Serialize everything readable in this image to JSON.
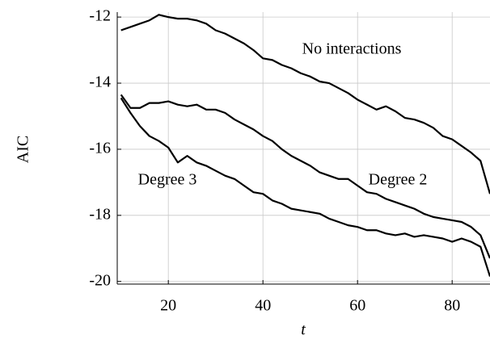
{
  "chart_data": {
    "type": "line",
    "x_label": "t",
    "y_label": "AIC",
    "x": [
      10,
      12,
      14,
      16,
      18,
      20,
      22,
      24,
      26,
      28,
      30,
      32,
      34,
      36,
      38,
      40,
      42,
      44,
      46,
      48,
      50,
      52,
      54,
      56,
      58,
      60,
      62,
      64,
      66,
      68,
      70,
      72,
      74,
      76,
      78,
      80,
      82,
      84,
      86,
      88
    ],
    "series": [
      {
        "name": "No interactions",
        "color": "#000000",
        "values": [
          -12.4,
          -12.3,
          -12.2,
          -12.1,
          -11.93,
          -12.0,
          -12.05,
          -12.05,
          -12.1,
          -12.2,
          -12.4,
          -12.5,
          -12.65,
          -12.8,
          -13.0,
          -13.25,
          -13.3,
          -13.45,
          -13.55,
          -13.7,
          -13.8,
          -13.95,
          -14.0,
          -14.15,
          -14.3,
          -14.5,
          -14.65,
          -14.8,
          -14.7,
          -14.85,
          -15.05,
          -15.1,
          -15.2,
          -15.35,
          -15.6,
          -15.7,
          -15.9,
          -16.1,
          -16.35,
          -17.35
        ]
      },
      {
        "name": "Degree 2",
        "color": "#000000",
        "values": [
          -14.35,
          -14.75,
          -14.75,
          -14.6,
          -14.6,
          -14.55,
          -14.65,
          -14.7,
          -14.65,
          -14.8,
          -14.8,
          -14.9,
          -15.1,
          -15.25,
          -15.4,
          -15.6,
          -15.75,
          -16.0,
          -16.2,
          -16.35,
          -16.5,
          -16.7,
          -16.8,
          -16.9,
          -16.9,
          -17.1,
          -17.3,
          -17.35,
          -17.5,
          -17.6,
          -17.7,
          -17.8,
          -17.95,
          -18.05,
          -18.1,
          -18.15,
          -18.2,
          -18.35,
          -18.6,
          -19.3
        ]
      },
      {
        "name": "Degree 3",
        "color": "#000000",
        "values": [
          -14.45,
          -14.9,
          -15.3,
          -15.6,
          -15.75,
          -15.95,
          -16.4,
          -16.2,
          -16.4,
          -16.5,
          -16.65,
          -16.8,
          -16.9,
          -17.1,
          -17.3,
          -17.35,
          -17.55,
          -17.65,
          -17.8,
          -17.85,
          -17.9,
          -17.95,
          -18.1,
          -18.2,
          -18.3,
          -18.35,
          -18.45,
          -18.45,
          -18.55,
          -18.6,
          -18.55,
          -18.65,
          -18.6,
          -18.65,
          -18.7,
          -18.8,
          -18.7,
          -18.8,
          -18.95,
          -19.85
        ]
      }
    ],
    "xlim": [
      9.2,
      88
    ],
    "ylim": [
      -20.08,
      -11.85
    ],
    "xticks": [
      20,
      40,
      60,
      80
    ],
    "yticks": [
      -20,
      -18,
      -16,
      -14,
      -12
    ],
    "grid": true
  }
}
